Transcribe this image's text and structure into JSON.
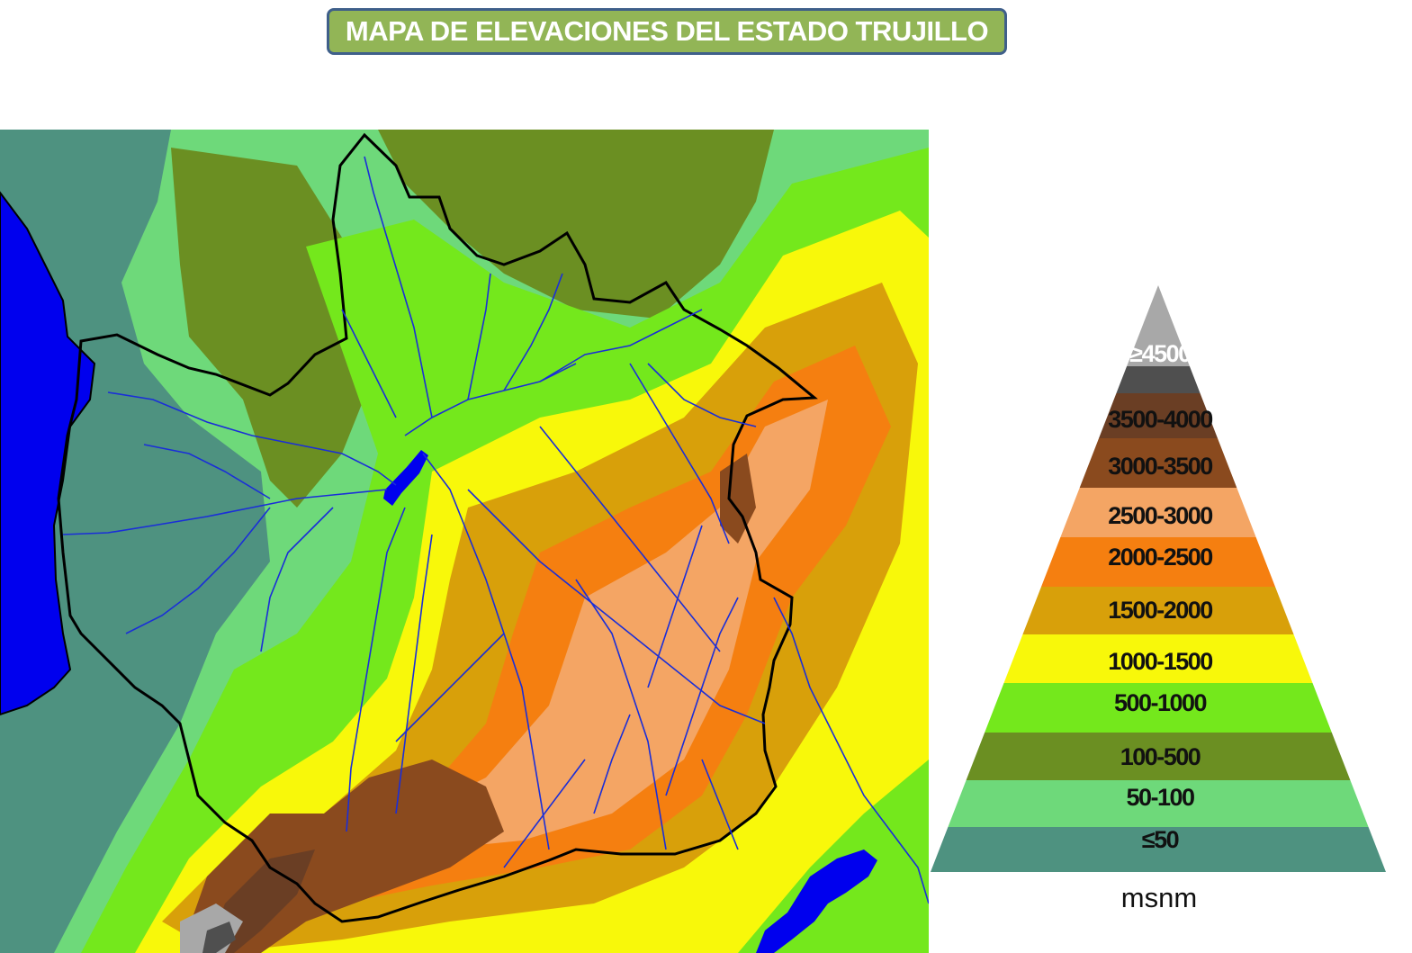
{
  "title": "MAPA DE ELEVACIONES DEL ESTADO TRUJILLO",
  "legend": {
    "unit": "msnm",
    "classes": [
      {
        "label": "≥4500",
        "color": "#a8a8a8"
      },
      {
        "label": "",
        "color": "#4f4f4f"
      },
      {
        "label": "3500-4000",
        "color": "#6a3e24"
      },
      {
        "label": "3000-3500",
        "color": "#8a4a1e"
      },
      {
        "label": "2500-3000",
        "color": "#f4a564"
      },
      {
        "label": "2000-2500",
        "color": "#f57f10"
      },
      {
        "label": "1500-2000",
        "color": "#d8a00a"
      },
      {
        "label": "1000-1500",
        "color": "#f8f80a"
      },
      {
        "label": "500-1000",
        "color": "#74e81c"
      },
      {
        "label": "100-500",
        "color": "#6b8f22"
      },
      {
        "label": "50-100",
        "color": "#6ed97a"
      },
      {
        "label": "≤50",
        "color": "#4e9280"
      }
    ]
  },
  "colors": {
    "water": "#0000ee",
    "rivers": "#1a2ed8",
    "boundary": "#000000",
    "title_fill": "#92b556",
    "title_border": "#3f5f8a"
  }
}
